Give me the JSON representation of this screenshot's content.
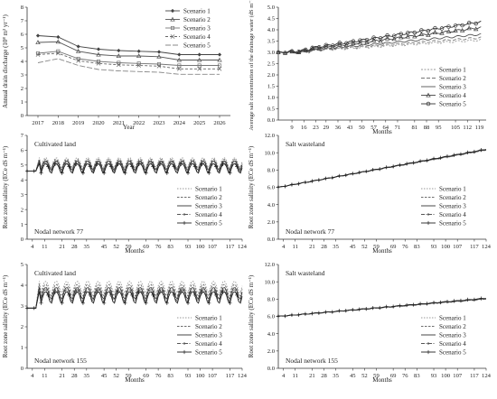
{
  "chart_data": [
    {
      "id": "p1",
      "type": "line",
      "xlabel": "Year",
      "ylabel": "Annual drain discharge (10⁸ m³ yr⁻¹)",
      "ylim": [
        0,
        8
      ],
      "yticks": [
        "0",
        "1",
        "2",
        "3",
        "4",
        "5",
        "6",
        "7",
        "8"
      ],
      "x": [
        2017,
        2018,
        2019,
        2020,
        2021,
        2022,
        2023,
        2024,
        2025,
        2026
      ],
      "xticks": [
        "2017",
        "2018",
        "2019",
        "2020",
        "2021",
        "2022",
        "2023",
        "2024",
        "2025",
        "2026"
      ],
      "legend_position": "top-right",
      "annotations": [],
      "series": [
        {
          "name": "Scenario 1",
          "values": [
            5.9,
            5.8,
            5.1,
            4.9,
            4.8,
            4.75,
            4.7,
            4.5,
            4.5,
            4.5
          ]
        },
        {
          "name": "Scenario 2",
          "values": [
            5.4,
            5.45,
            4.75,
            4.5,
            4.4,
            4.4,
            4.35,
            4.1,
            4.1,
            4.1
          ]
        },
        {
          "name": "Scenario 3",
          "values": [
            4.6,
            4.75,
            4.2,
            4.0,
            3.9,
            3.85,
            3.8,
            3.7,
            3.7,
            3.7
          ]
        },
        {
          "name": "Scenario 4",
          "values": [
            4.5,
            4.6,
            4.05,
            3.85,
            3.75,
            3.7,
            3.65,
            3.45,
            3.45,
            3.45
          ]
        },
        {
          "name": "Scenario 5",
          "values": [
            3.9,
            4.2,
            3.7,
            3.4,
            3.3,
            3.25,
            3.2,
            3.05,
            3.05,
            3.05
          ]
        }
      ]
    },
    {
      "id": "p2",
      "type": "line",
      "xlabel": "Months",
      "ylabel": "Average salt concentration of the drainage water (dS m⁻¹)",
      "ylim": [
        0,
        5
      ],
      "yticks": [
        "0.0",
        "0.5",
        "1.0",
        "1.5",
        "2.0",
        "2.5",
        "3.0",
        "3.5",
        "4.0",
        "4.5",
        "5.0"
      ],
      "xlim": [
        1,
        123
      ],
      "xticks": [
        "9",
        "16",
        "23",
        "29",
        "36",
        "43",
        "50",
        "57",
        "64",
        "71",
        "81",
        "88",
        "95",
        "105",
        "112",
        "119"
      ],
      "legend_position": "bottom-right",
      "annotations": [],
      "series": [
        {
          "name": "Scenario 1",
          "start": 2.97,
          "end": 3.55,
          "dip": 0.05
        },
        {
          "name": "Scenario 2",
          "start": 2.97,
          "end": 3.65,
          "dip": 0.05
        },
        {
          "name": "Scenario 3",
          "start": 2.97,
          "end": 3.8,
          "dip": 0.05
        },
        {
          "name": "Scenario 4",
          "start": 2.97,
          "end": 4.1,
          "dip": 0.05
        },
        {
          "name": "Scenario 5",
          "start": 2.97,
          "end": 4.35,
          "dip": 0.05
        }
      ]
    },
    {
      "id": "p3",
      "type": "line",
      "xlabel": "Months",
      "ylabel": "Root zone salinity (ECe dS m⁻¹)",
      "ylim": [
        0,
        7
      ],
      "yticks": [
        "0",
        "1",
        "2",
        "3",
        "4",
        "5",
        "6",
        "7"
      ],
      "xlim": [
        1,
        124
      ],
      "xticks": [
        "4",
        "11",
        "21",
        "28",
        "35",
        "45",
        "52",
        "59",
        "69",
        "76",
        "83",
        "93",
        "100",
        "107",
        "117",
        "124"
      ],
      "legend_position": "bottom-right",
      "annotations": [
        "Cultivated land",
        "Nodal network 77"
      ],
      "series": [
        {
          "name": "Scenario 1",
          "start": 4.6,
          "peak": 5.5,
          "trough": 4.7,
          "offset": 0.0
        },
        {
          "name": "Scenario 2",
          "start": 4.6,
          "peak": 5.4,
          "trough": 4.6,
          "offset": 0.0
        },
        {
          "name": "Scenario 3",
          "start": 4.6,
          "peak": 5.3,
          "trough": 4.5,
          "offset": 0.0
        },
        {
          "name": "Scenario 4",
          "start": 4.6,
          "peak": 5.2,
          "trough": 4.4,
          "offset": 0.0
        },
        {
          "name": "Scenario 5",
          "start": 4.6,
          "peak": 5.1,
          "trough": 4.3,
          "offset": 0.0
        }
      ]
    },
    {
      "id": "p4",
      "type": "line",
      "xlabel": "Months",
      "ylabel": "Root zone salinity (ECe dS m⁻¹)",
      "ylim": [
        0,
        12
      ],
      "yticks": [
        "0.0",
        "2.0",
        "4.0",
        "6.0",
        "8.0",
        "10.0",
        "12.0"
      ],
      "xlim": [
        1,
        124
      ],
      "xticks": [
        "4",
        "11",
        "21",
        "28",
        "35",
        "45",
        "52",
        "59",
        "69",
        "76",
        "83",
        "93",
        "100",
        "107",
        "117",
        "124"
      ],
      "legend_position": "bottom-right",
      "annotations": [
        "Salt wasteland",
        "Nodal network 77"
      ],
      "series": [
        {
          "name": "Scenario 1",
          "start": 6.0,
          "end": 10.3
        },
        {
          "name": "Scenario 2",
          "start": 6.0,
          "end": 10.3
        },
        {
          "name": "Scenario 3",
          "start": 6.0,
          "end": 10.35
        },
        {
          "name": "Scenario 4",
          "start": 6.0,
          "end": 10.35
        },
        {
          "name": "Scenario 5",
          "start": 6.0,
          "end": 10.4
        }
      ]
    },
    {
      "id": "p5",
      "type": "line",
      "xlabel": "Months",
      "ylabel": "Root zone salinity (ECe dS m⁻¹)",
      "ylim": [
        0,
        5
      ],
      "yticks": [
        "0",
        "1",
        "2",
        "3",
        "4",
        "5"
      ],
      "xlim": [
        1,
        124
      ],
      "xticks": [
        "4",
        "11",
        "21",
        "28",
        "35",
        "45",
        "52",
        "59",
        "69",
        "76",
        "83",
        "93",
        "100",
        "107",
        "117",
        "124"
      ],
      "legend_position": "bottom-right",
      "annotations": [
        "Cultivated land",
        "Nodal network 155"
      ],
      "series": [
        {
          "name": "Scenario 1",
          "start": 2.9,
          "peak": 4.2,
          "trough": 3.5
        },
        {
          "name": "Scenario 2",
          "start": 2.9,
          "peak": 4.05,
          "trough": 3.35
        },
        {
          "name": "Scenario 3",
          "start": 2.9,
          "peak": 3.9,
          "trough": 3.2
        },
        {
          "name": "Scenario 4",
          "start": 2.9,
          "peak": 3.8,
          "trough": 3.1
        },
        {
          "name": "Scenario 5",
          "start": 2.9,
          "peak": 3.7,
          "trough": 3.0
        }
      ]
    },
    {
      "id": "p6",
      "type": "line",
      "xlabel": "Months",
      "ylabel": "Root zone salinity (ECe dS m⁻¹)",
      "ylim": [
        0,
        12
      ],
      "yticks": [
        "0.0",
        "2.0",
        "4.0",
        "6.0",
        "8.0",
        "10.0",
        "12.0"
      ],
      "xlim": [
        1,
        124
      ],
      "xticks": [
        "4",
        "11",
        "21",
        "28",
        "35",
        "45",
        "52",
        "59",
        "69",
        "76",
        "83",
        "93",
        "100",
        "107",
        "117",
        "124"
      ],
      "legend_position": "bottom-right",
      "annotations": [
        "Salt wasteland",
        "Nodal network 155"
      ],
      "series": [
        {
          "name": "Scenario 1",
          "start": 6.0,
          "end": 8.0
        },
        {
          "name": "Scenario 2",
          "start": 6.0,
          "end": 8.0
        },
        {
          "name": "Scenario 3",
          "start": 6.0,
          "end": 8.05
        },
        {
          "name": "Scenario 4",
          "start": 6.0,
          "end": 8.05
        },
        {
          "name": "Scenario 5",
          "start": 6.0,
          "end": 8.1
        }
      ]
    }
  ]
}
